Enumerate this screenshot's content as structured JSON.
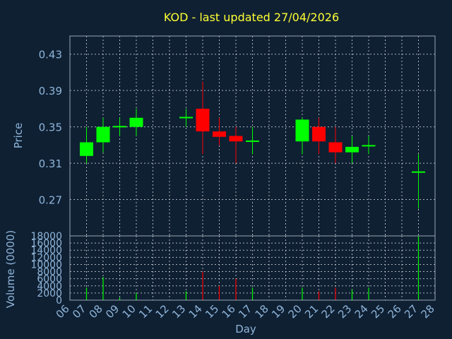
{
  "colors": {
    "background": "#0f2033",
    "up": "#00ff00",
    "down": "#ff0000",
    "title": "#ffff33",
    "axis_text": "#8fb5d9"
  },
  "chart_data": [
    {
      "type": "candlestick",
      "title": "KOD - last updated 27/04/2026",
      "xlabel": "",
      "ylabel": "Price",
      "ylim": [
        0.23,
        0.45
      ],
      "yticks": [
        "0.43",
        "0.39",
        "0.35",
        "0.31",
        "0.27"
      ],
      "grid": true,
      "candles": [
        {
          "day": "07",
          "open": 0.318,
          "close": 0.333,
          "high": 0.35,
          "low": 0.31
        },
        {
          "day": "08",
          "open": 0.333,
          "close": 0.35,
          "high": 0.36,
          "low": 0.322
        },
        {
          "day": "09",
          "open": 0.35,
          "close": 0.351,
          "high": 0.36,
          "low": 0.34
        },
        {
          "day": "10",
          "open": 0.35,
          "close": 0.36,
          "high": 0.37,
          "low": 0.34
        },
        {
          "day": "13",
          "open": 0.36,
          "close": 0.361,
          "high": 0.37,
          "low": 0.35
        },
        {
          "day": "14",
          "open": 0.37,
          "close": 0.345,
          "high": 0.4,
          "low": 0.32
        },
        {
          "day": "15",
          "open": 0.345,
          "close": 0.339,
          "high": 0.36,
          "low": 0.33
        },
        {
          "day": "16",
          "open": 0.34,
          "close": 0.334,
          "high": 0.35,
          "low": 0.31
        },
        {
          "day": "17",
          "open": 0.334,
          "close": 0.335,
          "high": 0.35,
          "low": 0.32
        },
        {
          "day": "20",
          "open": 0.334,
          "close": 0.358,
          "high": 0.36,
          "low": 0.32
        },
        {
          "day": "21",
          "open": 0.35,
          "close": 0.334,
          "high": 0.36,
          "low": 0.32
        },
        {
          "day": "22",
          "open": 0.333,
          "close": 0.322,
          "high": 0.35,
          "low": 0.31
        },
        {
          "day": "23",
          "open": 0.322,
          "close": 0.328,
          "high": 0.34,
          "low": 0.31
        },
        {
          "day": "24",
          "open": 0.329,
          "close": 0.33,
          "high": 0.34,
          "low": 0.32
        },
        {
          "day": "27",
          "open": 0.3,
          "close": 0.301,
          "high": 0.32,
          "low": 0.26
        }
      ]
    },
    {
      "type": "bar",
      "xlabel": "Day",
      "ylabel": "Volume (0000)",
      "ylim": [
        0,
        18000
      ],
      "yticks": [
        "18000",
        "16000",
        "14000",
        "12000",
        "10000",
        "8000",
        "6000",
        "4000",
        "2000",
        "0"
      ],
      "categories": [
        "06",
        "07",
        "08",
        "09",
        "10",
        "11",
        "12",
        "13",
        "14",
        "15",
        "16",
        "17",
        "18",
        "19",
        "20",
        "21",
        "22",
        "23",
        "24",
        "25",
        "26",
        "27",
        "28"
      ],
      "bars": [
        {
          "day": "07",
          "value": 3500,
          "color": "#00ff00"
        },
        {
          "day": "08",
          "value": 6500,
          "color": "#00ff00"
        },
        {
          "day": "09",
          "value": 700,
          "color": "#00ff00"
        },
        {
          "day": "10",
          "value": 2000,
          "color": "#00ff00"
        },
        {
          "day": "13",
          "value": 2500,
          "color": "#00ff00"
        },
        {
          "day": "14",
          "value": 8000,
          "color": "#ff0000"
        },
        {
          "day": "15",
          "value": 4000,
          "color": "#ff0000"
        },
        {
          "day": "16",
          "value": 6000,
          "color": "#ff0000"
        },
        {
          "day": "17",
          "value": 3500,
          "color": "#00ff00"
        },
        {
          "day": "20",
          "value": 3500,
          "color": "#00ff00"
        },
        {
          "day": "21",
          "value": 2500,
          "color": "#ff0000"
        },
        {
          "day": "22",
          "value": 3500,
          "color": "#ff0000"
        },
        {
          "day": "23",
          "value": 3000,
          "color": "#00ff00"
        },
        {
          "day": "24",
          "value": 3500,
          "color": "#00ff00"
        },
        {
          "day": "27",
          "value": 18000,
          "color": "#00ff00"
        }
      ]
    }
  ]
}
